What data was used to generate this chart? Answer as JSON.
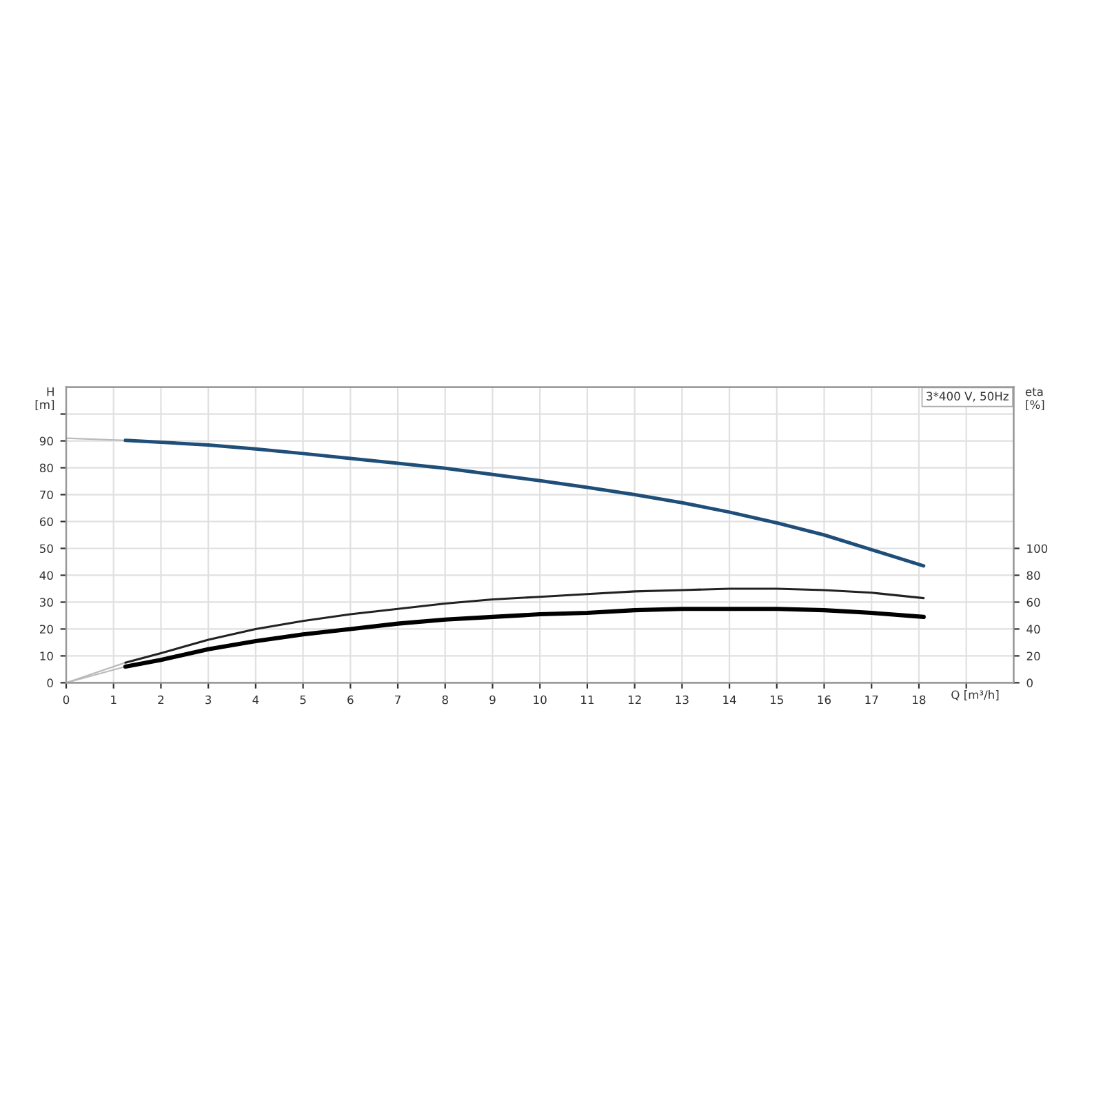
{
  "chart_data": {
    "type": "line",
    "ylabel": "H\n[m]",
    "y2label": "eta\n[%]",
    "xlabel": "Q [m³/h]",
    "annotations": [
      "3*400 V, 50Hz"
    ],
    "xlim": [
      0,
      20
    ],
    "xticks": [
      0,
      1,
      2,
      3,
      4,
      5,
      6,
      7,
      8,
      9,
      10,
      11,
      12,
      13,
      14,
      15,
      16,
      17,
      18,
      {
        "value": 19,
        "label": null
      }
    ],
    "ylim": [
      0,
      110
    ],
    "yticks": [
      0,
      10,
      20,
      30,
      40,
      50,
      60,
      70,
      80,
      90,
      {
        "value": 100,
        "label": null
      }
    ],
    "y2lim": [
      0,
      220
    ],
    "y2ticks": [
      0,
      20,
      40,
      60,
      80,
      100
    ],
    "grid": true,
    "marker": "none",
    "line_style": "solid",
    "series": [
      {
        "color": "#bbbbbb",
        "x": [
          0,
          1.25
        ],
        "values": [
          91,
          90.2
        ]
      },
      {
        "color": "#1f4e79",
        "x": [
          1.25,
          2,
          3,
          4,
          5,
          6,
          7,
          8,
          9,
          10,
          11,
          12,
          13,
          14,
          15,
          16,
          17,
          18.1
        ],
        "values": [
          90.2,
          89.5,
          88.5,
          87,
          85.3,
          83.5,
          81.7,
          79.8,
          77.5,
          75.2,
          72.7,
          70,
          67,
          63.5,
          59.5,
          55,
          49.5,
          43.5
        ]
      },
      {
        "color": "#bbbbbb",
        "axis": "y2",
        "x": [
          0,
          1.25
        ],
        "values": [
          0,
          15
        ]
      },
      {
        "color": "#222222",
        "axis": "y2",
        "x": [
          1.25,
          2,
          3,
          4,
          5,
          6,
          7,
          8,
          9,
          10,
          11,
          12,
          13,
          14,
          15,
          16,
          17,
          18.1
        ],
        "values": [
          15,
          22,
          32,
          40,
          46,
          51,
          55,
          59,
          62,
          64,
          66,
          68,
          69,
          70,
          70,
          69,
          67,
          63
        ]
      },
      {
        "color": "#bbbbbb",
        "axis": "y2",
        "x": [
          0,
          1.25
        ],
        "values": [
          0,
          12
        ]
      },
      {
        "color": "#000000",
        "axis": "y2",
        "x": [
          1.25,
          2,
          3,
          4,
          5,
          6,
          7,
          8,
          9,
          10,
          11,
          12,
          13,
          14,
          15,
          16,
          17,
          18.1
        ],
        "values": [
          12,
          17,
          25,
          31,
          36,
          40,
          44,
          47,
          49,
          51,
          52,
          54,
          55,
          55,
          55,
          54,
          52,
          49
        ]
      }
    ]
  }
}
